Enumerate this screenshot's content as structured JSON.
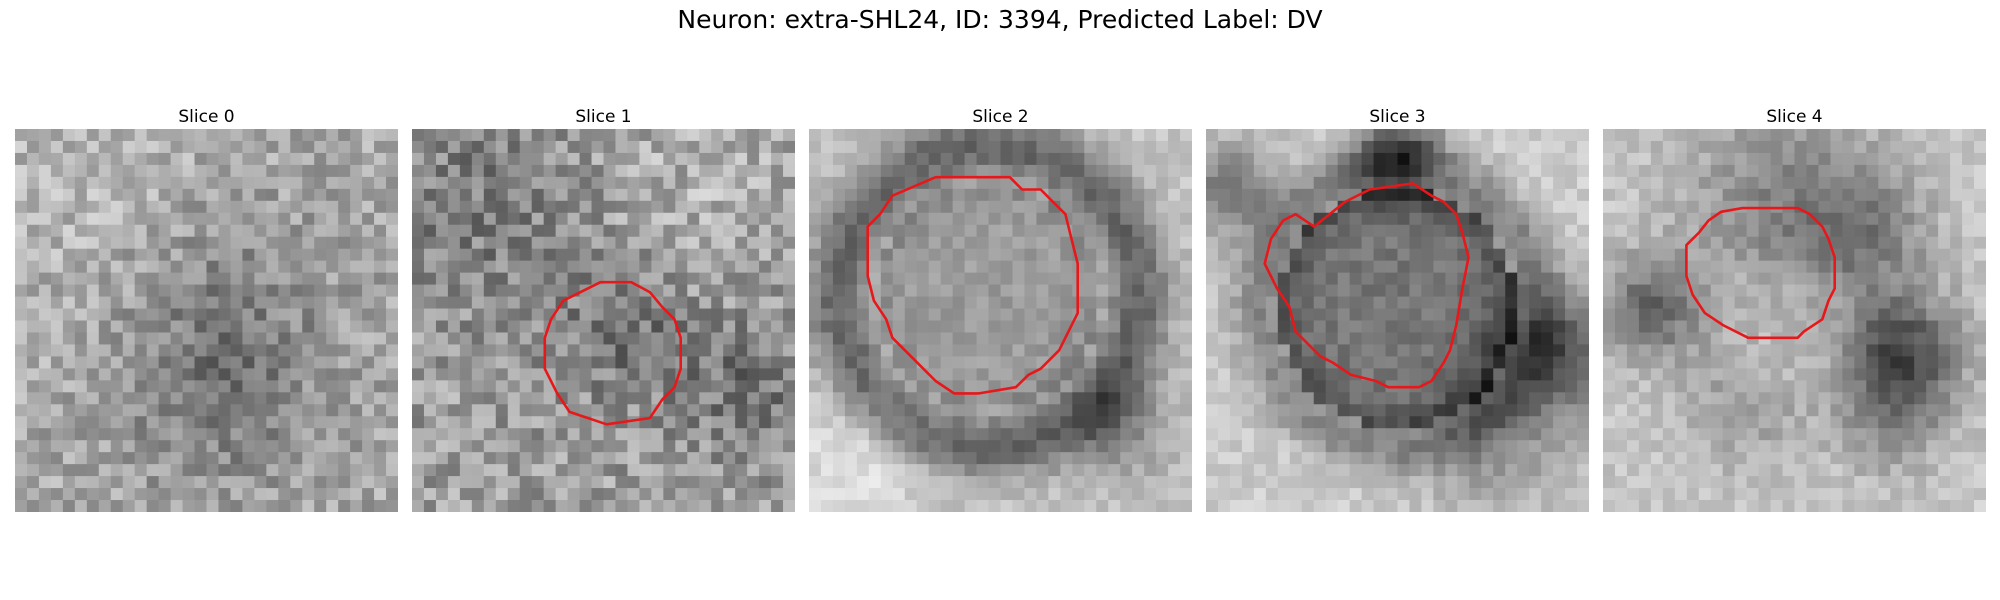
{
  "figure": {
    "title": "Neuron: extra-SHL24, ID: 3394, Predicted Label: DV",
    "contour_color": "#e8171a"
  },
  "panels": [
    {
      "title": "Slice 0",
      "has_contour": false
    },
    {
      "title": "Slice 1",
      "has_contour": true
    },
    {
      "title": "Slice 2",
      "has_contour": true
    },
    {
      "title": "Slice 3",
      "has_contour": true
    },
    {
      "title": "Slice 4",
      "has_contour": true
    }
  ]
}
